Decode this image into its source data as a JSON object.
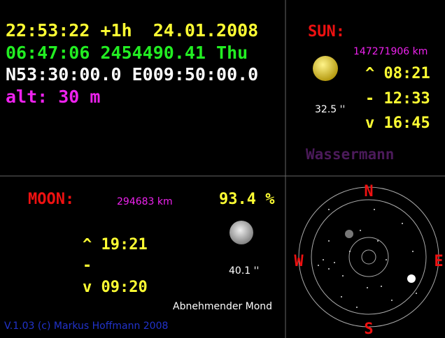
{
  "clock": {
    "time_line": "22:53:22 +1h  24.01.2008",
    "sidereal_line": "06:47:06 2454490.41 Thu",
    "position": "N53:30:00.0 E009:50:00.0",
    "altitude": "alt: 30 m"
  },
  "sun": {
    "label": "SUN:",
    "distance": "147271906 km",
    "rise": "^ 08:21",
    "transit": "- 12:33",
    "set": "v 16:45",
    "diameter": "32.5 ''",
    "zodiac": "Wassermann"
  },
  "moon": {
    "label": "MOON:",
    "distance": "294683 km",
    "illumination": "93.4 %",
    "rise": "^ 19:21",
    "transit": "-",
    "set": "v 09:20",
    "diameter": "40.1 ''",
    "phase": "Abnehmender Mond"
  },
  "footer": "V.1.03 (c) Markus Hoffmann 2008",
  "compass": {
    "north": "N",
    "east": "E",
    "south": "S",
    "west": "W"
  }
}
